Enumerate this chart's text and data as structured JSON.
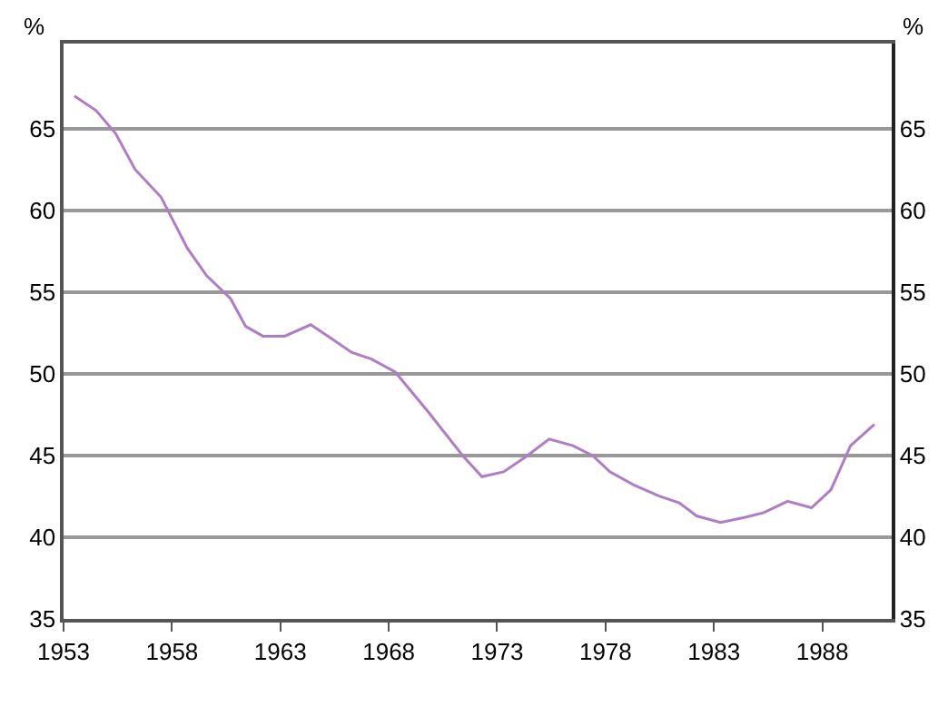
{
  "chart_data": {
    "type": "line",
    "ylabel": "%",
    "y2label": "%",
    "x": [
      1953.5,
      1954.5,
      1955.4,
      1956.3,
      1957.5,
      1958.7,
      1959.6,
      1960.7,
      1961.4,
      1962.2,
      1963.2,
      1964.4,
      1965.2,
      1966.3,
      1967.2,
      1968.3,
      1969.8,
      1971.4,
      1972.3,
      1973.3,
      1974.3,
      1975.4,
      1976.5,
      1977.4,
      1978.2,
      1979.3,
      1980.5,
      1981.4,
      1982.2,
      1983.3,
      1984.4,
      1985.3,
      1986.4,
      1987.5,
      1988.4,
      1989.3,
      1990.4
    ],
    "series": [
      {
        "color": "#b07cc6",
        "values": [
          67.0,
          66.1,
          64.7,
          62.5,
          60.8,
          57.7,
          56.0,
          54.6,
          52.9,
          52.3,
          52.3,
          53.0,
          52.3,
          51.3,
          50.9,
          50.1,
          47.7,
          45.0,
          43.7,
          44.0,
          44.9,
          46.0,
          45.6,
          45.0,
          44.0,
          43.2,
          42.5,
          42.1,
          41.3,
          40.9,
          41.2,
          41.5,
          42.2,
          41.8,
          42.9,
          45.6,
          46.9
        ]
      }
    ],
    "xlim": [
      1953,
      1991.2
    ],
    "xticks": [
      1953,
      1958,
      1963,
      1968,
      1973,
      1978,
      1983,
      1988
    ],
    "ylim": [
      35,
      70.2
    ],
    "yticks": [
      35,
      40,
      45,
      50,
      55,
      60,
      65
    ],
    "y2lim": [
      35,
      70.2
    ],
    "y2ticks": [
      35,
      40,
      45,
      50,
      55,
      60,
      65
    ],
    "grid": "y",
    "line_style": "solid",
    "marker": "none"
  }
}
